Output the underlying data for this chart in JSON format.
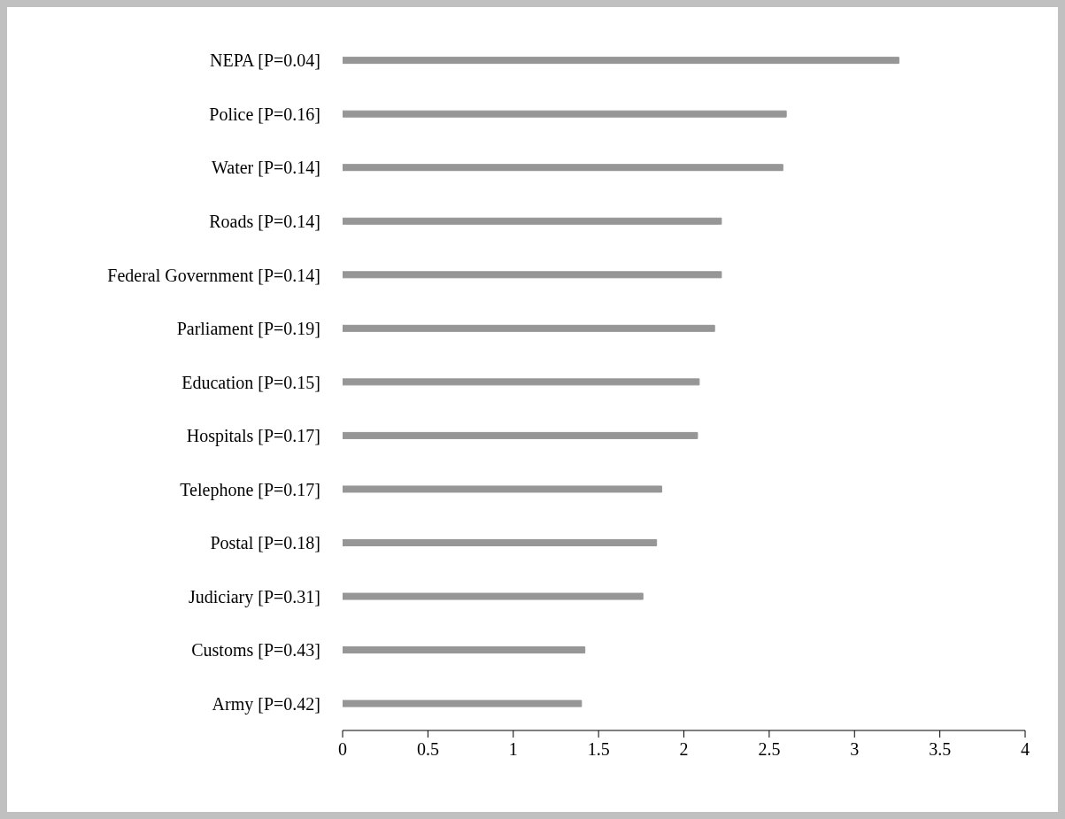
{
  "chart_data": {
    "type": "bar",
    "orientation": "horizontal",
    "categories": [
      "NEPA [P=0.04]",
      "Police [P=0.16]",
      "Water [P=0.14]",
      "Roads [P=0.14]",
      "Federal Government [P=0.14]",
      "Parliament [P=0.19]",
      "Education [P=0.15]",
      "Hospitals [P=0.17]",
      "Telephone [P=0.17]",
      "Postal [P=0.18]",
      "Judiciary [P=0.31]",
      "Customs [P=0.43]",
      "Army [P=0.42]"
    ],
    "values": [
      3.26,
      2.6,
      2.58,
      2.22,
      2.22,
      2.18,
      2.09,
      2.08,
      1.87,
      1.84,
      1.76,
      1.42,
      1.4
    ],
    "color": "#969696",
    "xlim": [
      0,
      4
    ],
    "xticks": [
      0,
      0.5,
      1,
      1.5,
      2,
      2.5,
      3,
      3.5,
      4
    ],
    "grid": false
  }
}
